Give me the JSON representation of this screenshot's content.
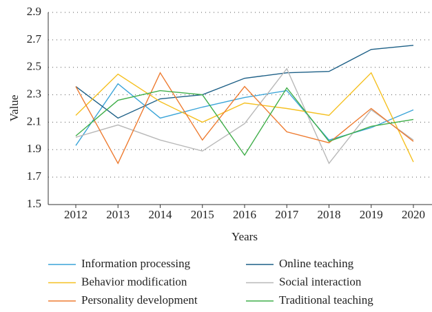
{
  "chart_data": {
    "type": "line",
    "x_label": "Years",
    "y_label": "Value",
    "categories": [
      "2012",
      "2013",
      "2014",
      "2015",
      "2016",
      "2017",
      "2018",
      "2019",
      "2020"
    ],
    "ylim": [
      1.5,
      2.9
    ],
    "yticks": [
      1.5,
      1.7,
      1.9,
      2.1,
      2.3,
      2.5,
      2.7,
      2.9
    ],
    "grid": true,
    "legend": "bottom",
    "series": [
      {
        "name": "Information processing",
        "color": "#3aa4d8",
        "values": [
          1.93,
          2.38,
          2.13,
          2.21,
          2.28,
          2.33,
          1.97,
          2.06,
          2.19
        ]
      },
      {
        "name": "Online teaching",
        "color": "#1c5f86",
        "values": [
          2.36,
          2.13,
          2.27,
          2.3,
          2.42,
          2.46,
          2.47,
          2.63,
          2.66
        ]
      },
      {
        "name": "Behavior modification",
        "color": "#f5c020",
        "values": [
          2.15,
          2.45,
          2.25,
          2.1,
          2.24,
          2.2,
          2.15,
          2.46,
          1.81
        ]
      },
      {
        "name": "Social interaction",
        "color": "#b8b8b8",
        "values": [
          1.99,
          2.08,
          1.97,
          1.89,
          2.09,
          2.49,
          1.8,
          2.19,
          1.97
        ]
      },
      {
        "name": "Personality development",
        "color": "#ee7b30",
        "values": [
          2.36,
          1.8,
          2.46,
          1.97,
          2.36,
          2.03,
          1.95,
          2.2,
          1.96
        ]
      },
      {
        "name": "Traditional teaching",
        "color": "#3fae49",
        "values": [
          2.0,
          2.26,
          2.33,
          2.3,
          1.86,
          2.35,
          1.96,
          2.07,
          2.12
        ]
      }
    ]
  }
}
